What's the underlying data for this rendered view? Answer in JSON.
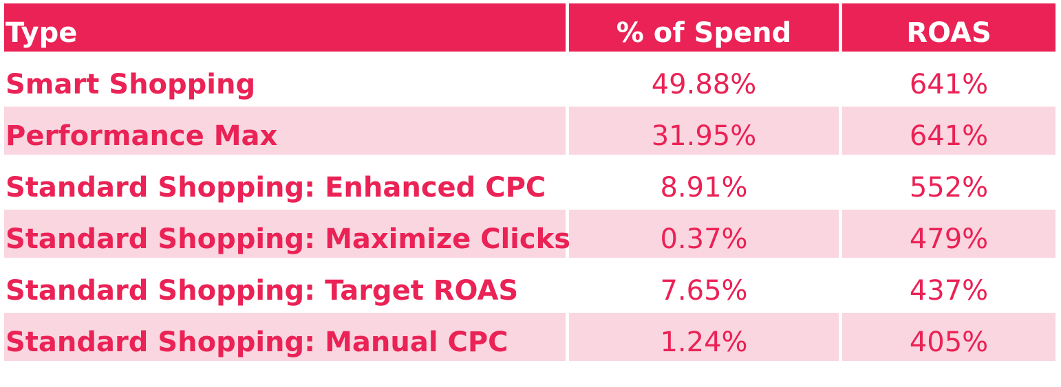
{
  "chart_data": {
    "type": "table",
    "columns": [
      "Type",
      "% of Spend",
      "ROAS"
    ],
    "rows": [
      {
        "type": "Smart Shopping",
        "spend": "49.88%",
        "roas": "641%"
      },
      {
        "type": "Performance Max",
        "spend": "31.95%",
        "roas": "641%"
      },
      {
        "type": "Standard Shopping: Enhanced CPC",
        "spend": "8.91%",
        "roas": "552%"
      },
      {
        "type": "Standard Shopping: Maximize Clicks",
        "spend": "0.37%",
        "roas": "479%"
      },
      {
        "type": "Standard Shopping: Target ROAS",
        "spend": "7.65%",
        "roas": "437%"
      },
      {
        "type": "Standard Shopping: Manual CPC",
        "spend": "1.24%",
        "roas": "405%"
      }
    ]
  },
  "colors": {
    "header_bg": "#ea2255",
    "header_text": "#ffffff",
    "body_text": "#ea2255",
    "alt_row_bg": "#f9d6e0"
  }
}
